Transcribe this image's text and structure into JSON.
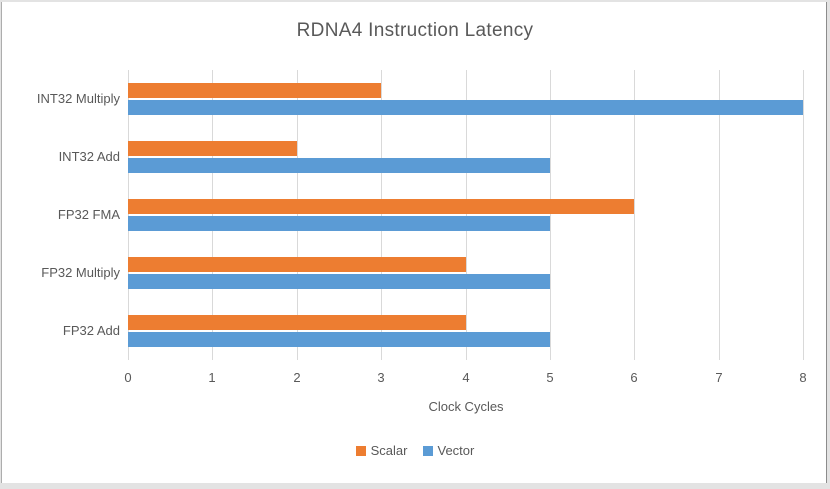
{
  "chart_data": {
    "type": "bar",
    "orientation": "horizontal",
    "title": "RDNA4 Instruction Latency",
    "categories": [
      "INT32 Multiply",
      "INT32 Add",
      "FP32 FMA",
      "FP32 Multiply",
      "FP32 Add"
    ],
    "series": [
      {
        "name": "Scalar",
        "color": "#ED7D31",
        "values": [
          3,
          2,
          6,
          4,
          4
        ]
      },
      {
        "name": "Vector",
        "color": "#5B9BD5",
        "values": [
          8,
          5,
          5,
          5,
          5
        ]
      }
    ],
    "xlabel": "Clock Cycles",
    "xlim": [
      0,
      8
    ],
    "xticks": [
      0,
      1,
      2,
      3,
      4,
      5,
      6,
      7,
      8
    ],
    "grid": true,
    "legend_position": "bottom",
    "colors": {
      "text": "#595959",
      "gridline": "#D9D9D9",
      "background": "#FFFFFF",
      "frame_border": "#8C8C8C"
    }
  }
}
